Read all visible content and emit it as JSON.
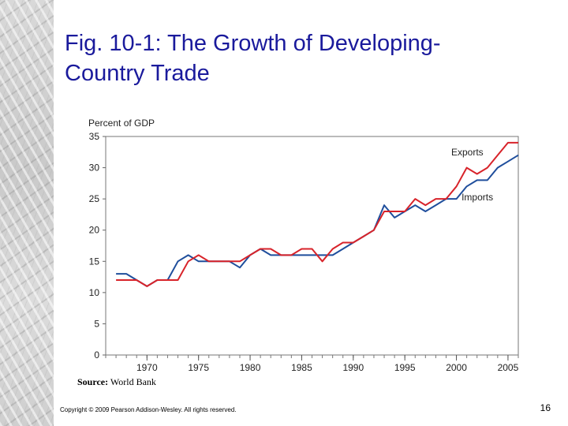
{
  "slide": {
    "title_line1": "Fig. 10-1: The Growth of Developing-",
    "title_line2": "Country Trade",
    "source_label": "Source:",
    "source_text": "World Bank",
    "copyright": "Copyright © 2009 Pearson Addison-Wesley. All rights reserved.",
    "page_number": "16",
    "title_color": "#1a1a9c"
  },
  "chart_data": {
    "type": "line",
    "ylabel": "Percent of GDP",
    "xlabel": "",
    "xlim": [
      1966,
      2006
    ],
    "ylim": [
      0,
      35
    ],
    "yticks": [
      0,
      5,
      10,
      15,
      20,
      25,
      30,
      35
    ],
    "xticks": [
      1970,
      1975,
      1980,
      1985,
      1990,
      1995,
      2000,
      2005
    ],
    "grid": false,
    "x": [
      1967,
      1968,
      1969,
      1970,
      1971,
      1972,
      1973,
      1974,
      1975,
      1976,
      1977,
      1978,
      1979,
      1980,
      1981,
      1982,
      1983,
      1984,
      1985,
      1986,
      1987,
      1988,
      1989,
      1990,
      1991,
      1992,
      1993,
      1994,
      1995,
      1996,
      1997,
      1998,
      1999,
      2000,
      2001,
      2002,
      2003,
      2004,
      2005,
      2006
    ],
    "series": [
      {
        "name": "Exports",
        "color": "#d8232a",
        "values": [
          12,
          12,
          12,
          11,
          12,
          12,
          12,
          15,
          16,
          15,
          15,
          15,
          15,
          16,
          17,
          17,
          16,
          16,
          17,
          17,
          15,
          17,
          18,
          18,
          19,
          20,
          23,
          23,
          23,
          25,
          24,
          25,
          25,
          27,
          30,
          29,
          30,
          32,
          34,
          34
        ]
      },
      {
        "name": "Imports",
        "color": "#1f4e9c",
        "values": [
          13,
          13,
          12,
          11,
          12,
          12,
          15,
          16,
          15,
          15,
          15,
          15,
          14,
          16,
          17,
          16,
          16,
          16,
          16,
          16,
          16,
          16,
          17,
          18,
          19,
          20,
          24,
          22,
          23,
          24,
          23,
          24,
          25,
          25,
          27,
          28,
          28,
          30,
          31,
          32
        ]
      }
    ]
  }
}
